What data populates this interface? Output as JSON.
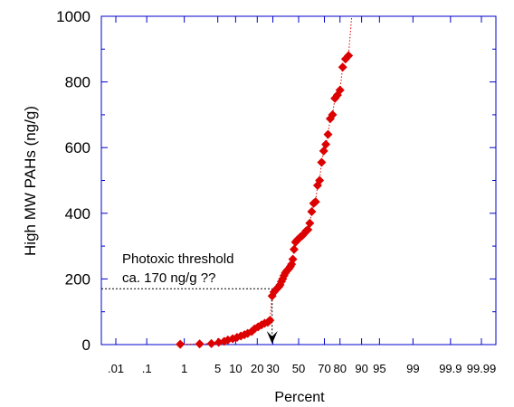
{
  "chart_data": {
    "type": "scatter",
    "title": "",
    "xlabel": "Percent",
    "ylabel": "High MW PAHs (ng/g)",
    "x_scale": "normal-probability",
    "ylim": [
      0,
      1000
    ],
    "y_ticks": [
      0,
      200,
      400,
      600,
      800,
      1000
    ],
    "x_ticks": [
      {
        "value": 0.01,
        "label": ".01"
      },
      {
        "value": 0.1,
        "label": ".1"
      },
      {
        "value": 1,
        "label": "1"
      },
      {
        "value": 5,
        "label": "5"
      },
      {
        "value": 10,
        "label": "10"
      },
      {
        "value": 20,
        "label": "20"
      },
      {
        "value": 30,
        "label": "30"
      },
      {
        "value": 50,
        "label": "50"
      },
      {
        "value": 70,
        "label": "70"
      },
      {
        "value": 80,
        "label": "80"
      },
      {
        "value": 90,
        "label": "90"
      },
      {
        "value": 95,
        "label": "95"
      },
      {
        "value": 99,
        "label": "99"
      },
      {
        "value": 99.9,
        "label": "99.9"
      },
      {
        "value": 99.99,
        "label": "99.99"
      }
    ],
    "marker_color": "#dd0000",
    "axis_color": "#0000cc",
    "series": [
      {
        "values": [
          [
            0.8,
            1
          ],
          [
            2.2,
            2
          ],
          [
            3.8,
            3
          ],
          [
            5.2,
            7
          ],
          [
            6.5,
            10
          ],
          [
            7.5,
            14
          ],
          [
            9.0,
            18
          ],
          [
            10.5,
            22
          ],
          [
            12.0,
            26
          ],
          [
            13.5,
            30
          ],
          [
            15.0,
            34
          ],
          [
            17.0,
            40
          ],
          [
            18.5,
            48
          ],
          [
            20.5,
            54
          ],
          [
            22.5,
            60
          ],
          [
            24.5,
            65
          ],
          [
            26.5,
            68
          ],
          [
            28.0,
            74
          ],
          [
            29.5,
            148
          ],
          [
            30.8,
            160
          ],
          [
            32.0,
            166
          ],
          [
            33.2,
            172
          ],
          [
            34.3,
            176
          ],
          [
            35.3,
            182
          ],
          [
            36.3,
            192
          ],
          [
            37.3,
            200
          ],
          [
            38.3,
            210
          ],
          [
            39.3,
            218
          ],
          [
            40.3,
            224
          ],
          [
            41.3,
            228
          ],
          [
            42.3,
            232
          ],
          [
            43.3,
            238
          ],
          [
            44.3,
            245
          ],
          [
            45.3,
            260
          ],
          [
            46.3,
            290
          ],
          [
            47.5,
            312
          ],
          [
            48.7,
            318
          ],
          [
            50.0,
            322
          ],
          [
            51.5,
            328
          ],
          [
            53.0,
            332
          ],
          [
            54.5,
            338
          ],
          [
            56.0,
            346
          ],
          [
            57.5,
            350
          ],
          [
            59.0,
            370
          ],
          [
            60.5,
            405
          ],
          [
            62.0,
            430
          ],
          [
            63.5,
            435
          ],
          [
            65.0,
            485
          ],
          [
            66.5,
            500
          ],
          [
            68.0,
            555
          ],
          [
            69.5,
            590
          ],
          [
            71.0,
            610
          ],
          [
            72.5,
            640
          ],
          [
            74.0,
            688
          ],
          [
            75.5,
            700
          ],
          [
            77.0,
            750
          ],
          [
            78.5,
            760
          ],
          [
            80.0,
            775
          ],
          [
            81.5,
            845
          ],
          [
            83.0,
            870
          ],
          [
            84.5,
            880
          ]
        ]
      }
    ],
    "upper_line_to": [
      86.0,
      1000
    ],
    "threshold": {
      "y": 170,
      "x": 29.5
    },
    "annotation": {
      "line1": "Photoxic threshold",
      "line2": "ca. 170 ng/g ??"
    }
  }
}
